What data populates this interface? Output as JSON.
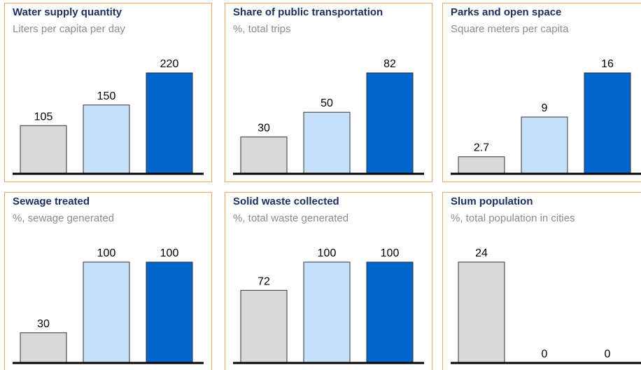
{
  "chart_data": [
    {
      "type": "bar",
      "title": "Water supply quantity",
      "subtitle": "Liters per capita per day",
      "values": [
        105,
        150,
        220
      ],
      "colors": [
        "#d9d9d9",
        "#c6e0f9",
        "#0066cc"
      ]
    },
    {
      "type": "bar",
      "title": "Share of public transportation",
      "subtitle": "%, total trips",
      "values": [
        30,
        50,
        82
      ],
      "colors": [
        "#d9d9d9",
        "#c6e0f9",
        "#0066cc"
      ]
    },
    {
      "type": "bar",
      "title": "Parks and open space",
      "subtitle": "Square meters per capita",
      "values": [
        2.7,
        9,
        16
      ],
      "colors": [
        "#d9d9d9",
        "#c6e0f9",
        "#0066cc"
      ]
    },
    {
      "type": "bar",
      "title": "Sewage treated",
      "subtitle": "%, sewage generated",
      "values": [
        30,
        100,
        100
      ],
      "colors": [
        "#d9d9d9",
        "#c6e0f9",
        "#0066cc"
      ]
    },
    {
      "type": "bar",
      "title": "Solid waste collected",
      "subtitle": "%, total waste generated",
      "values": [
        72,
        100,
        100
      ],
      "colors": [
        "#d9d9d9",
        "#c6e0f9",
        "#0066cc"
      ]
    },
    {
      "type": "bar",
      "title": "Slum population",
      "subtitle": "%, total population in cities",
      "values": [
        24,
        0,
        0
      ],
      "colors": [
        "#d9d9d9",
        "#c6e0f9",
        "#0066cc"
      ]
    }
  ]
}
